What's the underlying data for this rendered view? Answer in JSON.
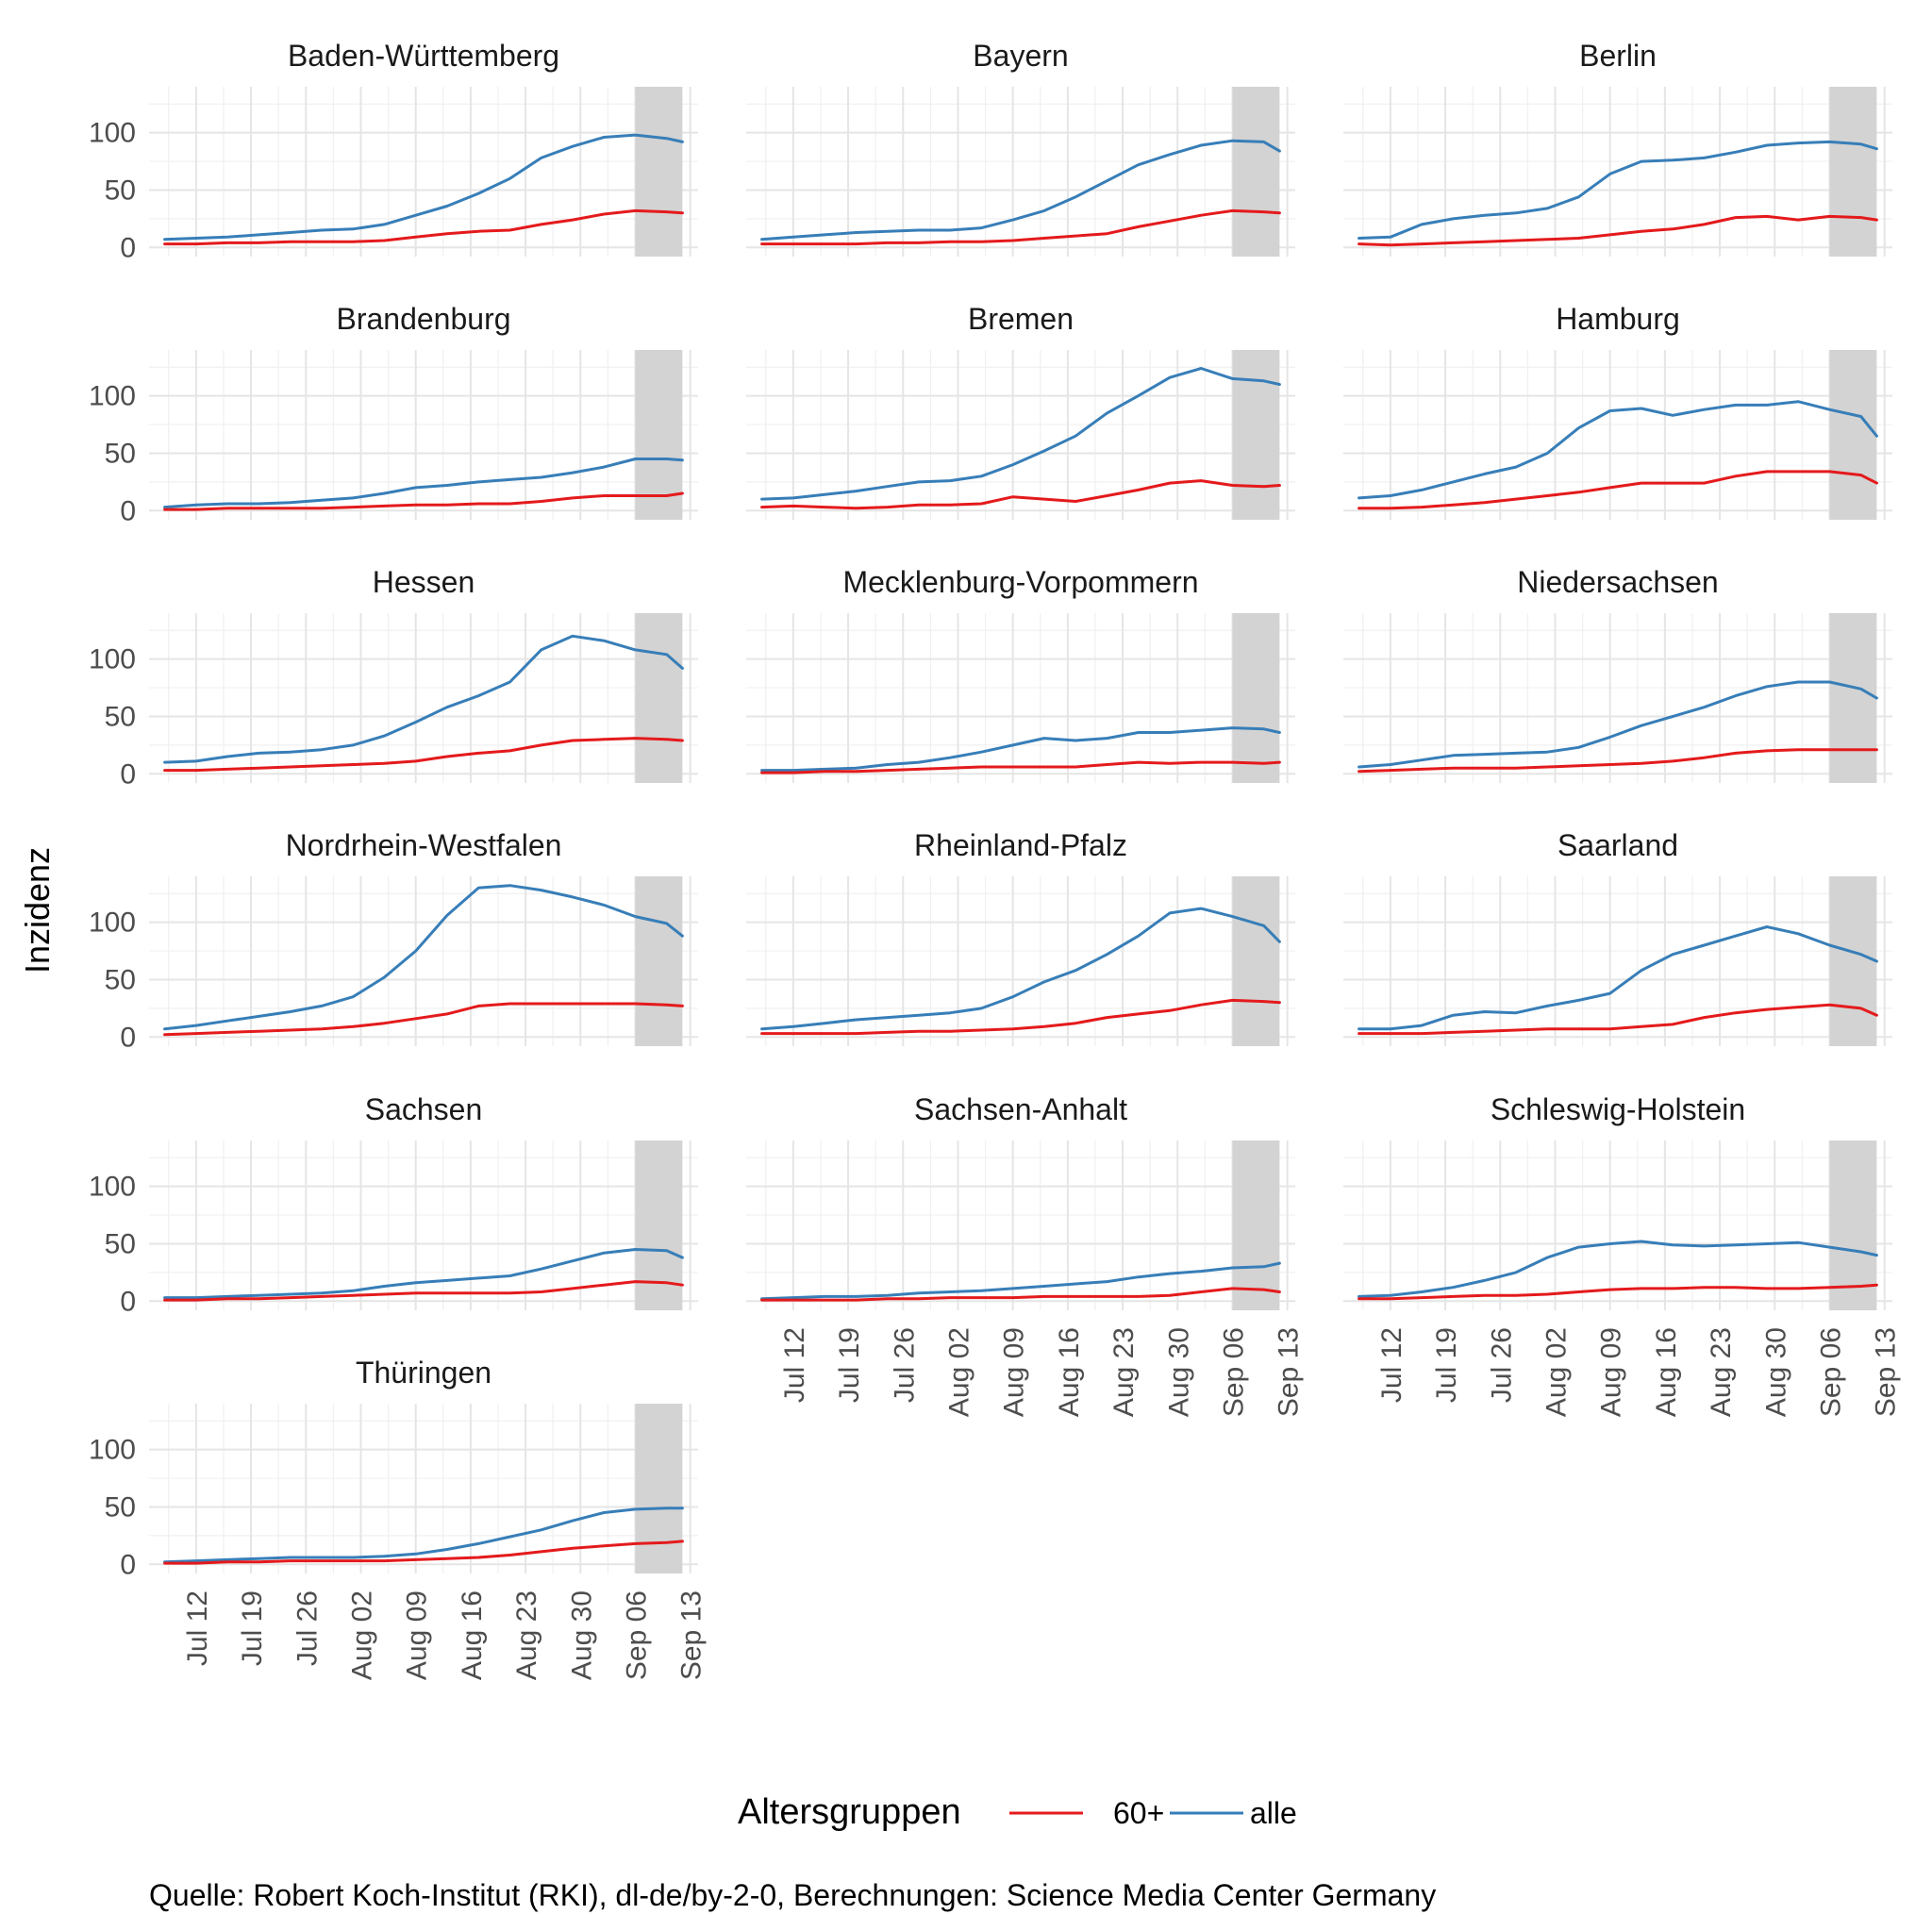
{
  "chart_data": {
    "type": "line",
    "facets": [
      "Baden-Württemberg",
      "Bayern",
      "Berlin",
      "Brandenburg",
      "Bremen",
      "Hamburg",
      "Hessen",
      "Mecklenburg-Vorpommern",
      "Niedersachsen",
      "Nordrhein-Westfalen",
      "Rheinland-Pfalz",
      "Saarland",
      "Sachsen",
      "Sachsen-Anhalt",
      "Schleswig-Holstein",
      "Thüringen"
    ],
    "x_tick_labels": [
      "Jul 12",
      "Jul 19",
      "Jul 26",
      "Aug 02",
      "Aug 09",
      "Aug 16",
      "Aug 23",
      "Aug 30",
      "Sep 06",
      "Sep 13"
    ],
    "x_tick_days": [
      0,
      7,
      14,
      21,
      28,
      35,
      42,
      49,
      56,
      63
    ],
    "x_range_days": [
      -6,
      64
    ],
    "shaded_region_days": [
      56,
      62
    ],
    "y_tick_labels": [
      "0",
      "50",
      "100"
    ],
    "y_ticks": [
      0,
      50,
      100
    ],
    "ylim": [
      -8,
      140
    ],
    "ylabel": "Inzidenz",
    "grid": true,
    "legend": {
      "title": "Altersgruppen",
      "position": "bottom",
      "entries": [
        {
          "label": "60+",
          "color": "#e41a1c"
        },
        {
          "label": "alle",
          "color": "#377eb8"
        }
      ]
    },
    "caption": "Quelle: Robert Koch-Institut (RKI), dl-de/by-2-0, Berechnungen: Science Media Center Germany",
    "series_x_days": [
      -4,
      0,
      4,
      8,
      12,
      16,
      20,
      24,
      28,
      32,
      36,
      40,
      44,
      48,
      52,
      56,
      60,
      62
    ],
    "series": {
      "Baden-Württemberg": {
        "alle": [
          7,
          8,
          9,
          11,
          13,
          15,
          16,
          20,
          28,
          36,
          47,
          60,
          78,
          88,
          96,
          98,
          95,
          92
        ],
        "60+": [
          3,
          3,
          4,
          4,
          5,
          5,
          5,
          6,
          9,
          12,
          14,
          15,
          20,
          24,
          29,
          32,
          31,
          30
        ]
      },
      "Bayern": {
        "alle": [
          7,
          9,
          11,
          13,
          14,
          15,
          15,
          17,
          24,
          32,
          44,
          58,
          72,
          81,
          89,
          93,
          92,
          84
        ],
        "60+": [
          3,
          3,
          3,
          3,
          4,
          4,
          5,
          5,
          6,
          8,
          10,
          12,
          18,
          23,
          28,
          32,
          31,
          30
        ]
      },
      "Berlin": {
        "alle": [
          8,
          9,
          20,
          25,
          28,
          30,
          34,
          44,
          64,
          75,
          76,
          78,
          83,
          89,
          91,
          92,
          90,
          86
        ],
        "60+": [
          3,
          2,
          3,
          4,
          5,
          6,
          7,
          8,
          11,
          14,
          16,
          20,
          26,
          27,
          24,
          27,
          26,
          24
        ]
      },
      "Brandenburg": {
        "alle": [
          3,
          5,
          6,
          6,
          7,
          9,
          11,
          15,
          20,
          22,
          25,
          27,
          29,
          33,
          38,
          45,
          45,
          44
        ],
        "60+": [
          1,
          1,
          2,
          2,
          2,
          2,
          3,
          4,
          5,
          5,
          6,
          6,
          8,
          11,
          13,
          13,
          13,
          15
        ]
      },
      "Bremen": {
        "alle": [
          10,
          11,
          14,
          17,
          21,
          25,
          26,
          30,
          40,
          52,
          65,
          85,
          100,
          116,
          124,
          115,
          113,
          110
        ],
        "60+": [
          3,
          4,
          3,
          2,
          3,
          5,
          5,
          6,
          12,
          10,
          8,
          13,
          18,
          24,
          26,
          22,
          21,
          22
        ]
      },
      "Hamburg": {
        "alle": [
          11,
          13,
          18,
          25,
          32,
          38,
          50,
          72,
          87,
          89,
          83,
          88,
          92,
          92,
          95,
          88,
          82,
          65
        ],
        "60+": [
          2,
          2,
          3,
          5,
          7,
          10,
          13,
          16,
          20,
          24,
          24,
          24,
          30,
          34,
          34,
          34,
          31,
          24
        ]
      },
      "Hessen": {
        "alle": [
          10,
          11,
          15,
          18,
          19,
          21,
          25,
          33,
          45,
          58,
          68,
          80,
          108,
          120,
          116,
          108,
          104,
          92
        ],
        "60+": [
          3,
          3,
          4,
          5,
          6,
          7,
          8,
          9,
          11,
          15,
          18,
          20,
          25,
          29,
          30,
          31,
          30,
          29
        ]
      },
      "Mecklenburg-Vorpommern": {
        "alle": [
          3,
          3,
          4,
          5,
          8,
          10,
          14,
          19,
          25,
          31,
          29,
          31,
          36,
          36,
          38,
          40,
          39,
          36
        ],
        "60+": [
          1,
          1,
          2,
          2,
          3,
          4,
          5,
          6,
          6,
          6,
          6,
          8,
          10,
          9,
          10,
          10,
          9,
          10
        ]
      },
      "Niedersachsen": {
        "alle": [
          6,
          8,
          12,
          16,
          17,
          18,
          19,
          23,
          32,
          42,
          50,
          58,
          68,
          76,
          80,
          80,
          74,
          66
        ],
        "60+": [
          2,
          3,
          4,
          5,
          5,
          5,
          6,
          7,
          8,
          9,
          11,
          14,
          18,
          20,
          21,
          21,
          21,
          21
        ]
      },
      "Nordrhein-Westfalen": {
        "alle": [
          7,
          10,
          14,
          18,
          22,
          27,
          35,
          52,
          75,
          106,
          130,
          132,
          128,
          122,
          115,
          105,
          99,
          88
        ],
        "60+": [
          2,
          3,
          4,
          5,
          6,
          7,
          9,
          12,
          16,
          20,
          27,
          29,
          29,
          29,
          29,
          29,
          28,
          27
        ]
      },
      "Rheinland-Pfalz": {
        "alle": [
          7,
          9,
          12,
          15,
          17,
          19,
          21,
          25,
          35,
          48,
          58,
          72,
          88,
          108,
          112,
          105,
          97,
          83
        ],
        "60+": [
          3,
          3,
          3,
          3,
          4,
          5,
          5,
          6,
          7,
          9,
          12,
          17,
          20,
          23,
          28,
          32,
          31,
          30
        ]
      },
      "Saarland": {
        "alle": [
          7,
          7,
          10,
          19,
          22,
          21,
          27,
          32,
          38,
          58,
          72,
          80,
          88,
          96,
          90,
          80,
          72,
          66
        ],
        "60+": [
          3,
          3,
          3,
          4,
          5,
          6,
          7,
          7,
          7,
          9,
          11,
          17,
          21,
          24,
          26,
          28,
          25,
          19
        ]
      },
      "Sachsen": {
        "alle": [
          3,
          3,
          4,
          5,
          6,
          7,
          9,
          13,
          16,
          18,
          20,
          22,
          28,
          35,
          42,
          45,
          44,
          38
        ],
        "60+": [
          1,
          1,
          2,
          2,
          3,
          4,
          5,
          6,
          7,
          7,
          7,
          7,
          8,
          11,
          14,
          17,
          16,
          14
        ]
      },
      "Sachsen-Anhalt": {
        "alle": [
          2,
          3,
          4,
          4,
          5,
          7,
          8,
          9,
          11,
          13,
          15,
          17,
          21,
          24,
          26,
          29,
          30,
          33
        ],
        "60+": [
          1,
          1,
          1,
          1,
          2,
          2,
          3,
          3,
          3,
          4,
          4,
          4,
          4,
          5,
          8,
          11,
          10,
          8
        ]
      },
      "Schleswig-Holstein": {
        "alle": [
          4,
          5,
          8,
          12,
          18,
          25,
          38,
          47,
          50,
          52,
          49,
          48,
          49,
          50,
          51,
          47,
          43,
          40
        ],
        "60+": [
          2,
          2,
          3,
          4,
          5,
          5,
          6,
          8,
          10,
          11,
          11,
          12,
          12,
          11,
          11,
          12,
          13,
          14
        ]
      },
      "Thüringen": {
        "alle": [
          2,
          3,
          4,
          5,
          6,
          6,
          6,
          7,
          9,
          13,
          18,
          24,
          30,
          38,
          45,
          48,
          49,
          49
        ],
        "60+": [
          1,
          1,
          2,
          2,
          3,
          3,
          3,
          3,
          4,
          5,
          6,
          8,
          11,
          14,
          16,
          18,
          19,
          20
        ]
      }
    }
  }
}
